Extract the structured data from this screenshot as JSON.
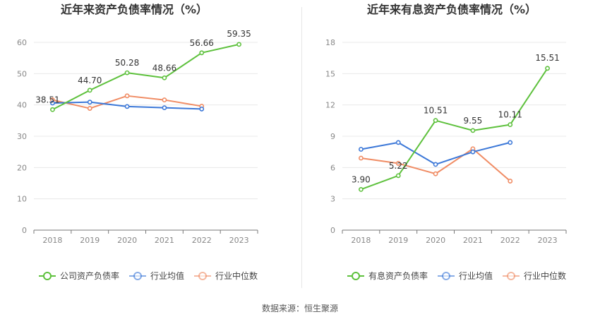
{
  "source_label": "数据来源：恒生聚源",
  "colors": {
    "company": "#5ec13d",
    "industry_avg": "#3c78d8",
    "industry_median": "#f08c64",
    "grid": "#e8e8e8",
    "axis": "#888888",
    "title": "#333333"
  },
  "chart_data": [
    {
      "type": "line",
      "title": "近年来资产负债率情况（%）",
      "x": [
        "2018",
        "2019",
        "2020",
        "2021",
        "2022",
        "2023"
      ],
      "ylim": [
        0,
        60
      ],
      "yticks": [
        0,
        10,
        20,
        30,
        40,
        50,
        60
      ],
      "grid": true,
      "legend_position": "bottom",
      "series": [
        {
          "name": "公司资产负债率",
          "color_key": "company",
          "values": [
            38.51,
            44.7,
            50.28,
            48.66,
            56.66,
            59.35
          ],
          "labels": [
            "38.51",
            "44.70",
            "50.28",
            "48.66",
            "56.66",
            "59.35"
          ]
        },
        {
          "name": "行业均值",
          "color_key": "industry_avg",
          "values": [
            40.6,
            40.9,
            39.5,
            39.1,
            38.7,
            null
          ]
        },
        {
          "name": "行业中位数",
          "color_key": "industry_median",
          "values": [
            41.6,
            38.9,
            42.9,
            41.6,
            39.6,
            null
          ]
        }
      ]
    },
    {
      "type": "line",
      "title": "近年来有息资产负债率情况（%）",
      "x": [
        "2018",
        "2019",
        "2020",
        "2021",
        "2022",
        "2023"
      ],
      "ylim": [
        0,
        18
      ],
      "yticks": [
        0,
        3,
        6,
        9,
        12,
        15,
        18
      ],
      "grid": true,
      "legend_position": "bottom",
      "series": [
        {
          "name": "有息资产负债率",
          "color_key": "company",
          "values": [
            3.9,
            5.22,
            10.51,
            9.55,
            10.11,
            15.51
          ],
          "labels": [
            "3.90",
            "5.22",
            "10.51",
            "9.55",
            "10.11",
            "15.51"
          ]
        },
        {
          "name": "行业均值",
          "color_key": "industry_avg",
          "values": [
            7.75,
            8.4,
            6.3,
            7.5,
            8.4,
            null
          ]
        },
        {
          "name": "行业中位数",
          "color_key": "industry_median",
          "values": [
            6.9,
            6.4,
            5.4,
            7.8,
            4.7,
            null
          ]
        }
      ]
    }
  ]
}
